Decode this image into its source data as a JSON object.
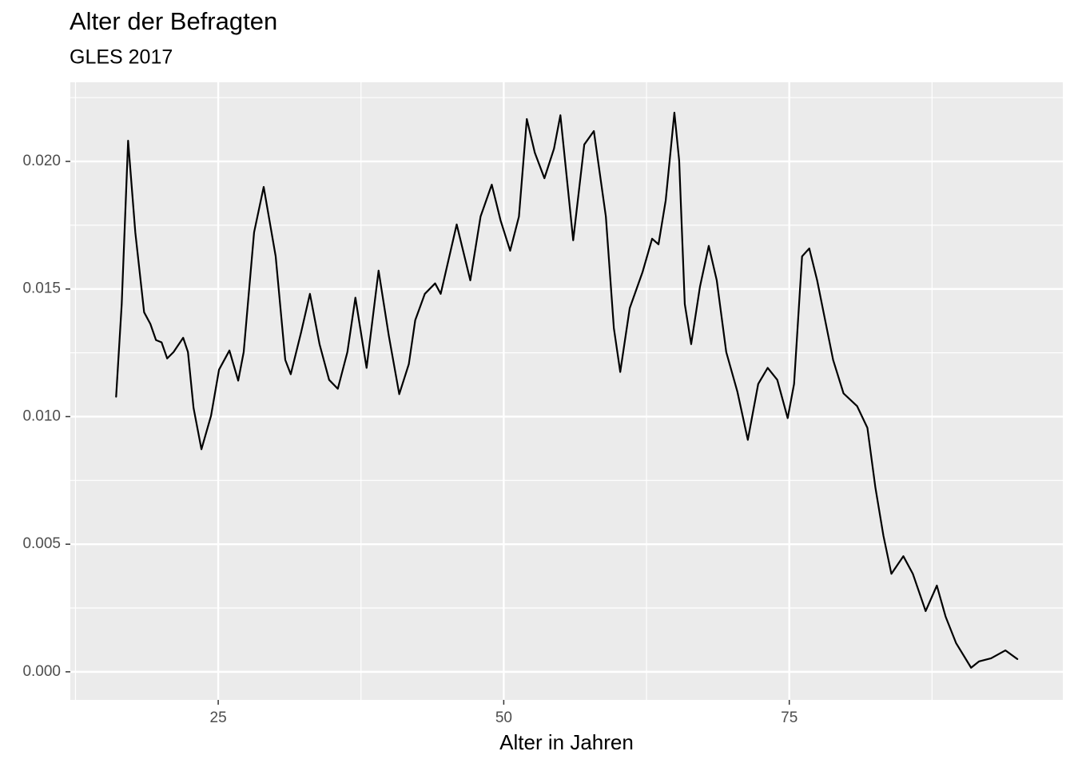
{
  "chart_data": {
    "type": "line",
    "title": "Alter der Befragten",
    "subtitle": "GLES 2017",
    "x_label": "Alter in Jahren",
    "x": [
      16.06,
      16.55,
      17.11,
      17.74,
      18.51,
      19.06,
      19.55,
      20.04,
      20.53,
      21.09,
      21.93,
      22.35,
      22.84,
      23.53,
      24.37,
      25.07,
      25.98,
      26.75,
      27.23,
      28.14,
      28.98,
      30.03,
      30.87,
      31.35,
      32.26,
      33.03,
      33.87,
      34.71,
      35.47,
      36.31,
      37.01,
      37.99,
      39.04,
      39.94,
      40.85,
      41.69,
      42.25,
      43.09,
      43.99,
      44.48,
      45.88,
      47.07,
      47.97,
      48.95,
      49.72,
      50.56,
      51.33,
      52.02,
      52.72,
      53.56,
      54.4,
      54.96,
      56.08,
      57.05,
      57.89,
      58.94,
      59.64,
      60.2,
      61.03,
      62.15,
      62.99,
      63.55,
      64.18,
      64.94,
      65.36,
      65.85,
      66.41,
      67.18,
      67.95,
      68.65,
      69.48,
      70.46,
      71.37,
      72.28,
      73.11,
      73.95,
      74.86,
      75.42,
      76.12,
      76.75,
      77.44,
      78,
      78.84,
      79.75,
      80.94,
      81.84,
      82.54,
      83.24,
      83.94,
      84.99,
      85.82,
      86.94,
      87.92,
      88.69,
      89.6,
      90.92,
      91.62,
      92.67,
      93.92,
      94.97
    ],
    "series": [
      {
        "color": "#000000",
        "values": [
          0.01078,
          0.01441,
          0.02081,
          0.01722,
          0.01409,
          0.01363,
          0.013,
          0.01291,
          0.01228,
          0.01253,
          0.01309,
          0.01253,
          0.01034,
          0.00872,
          0.01003,
          0.01184,
          0.01259,
          0.01141,
          0.01253,
          0.01722,
          0.019,
          0.01628,
          0.01222,
          0.01166,
          0.01331,
          0.01481,
          0.01284,
          0.01144,
          0.01109,
          0.01253,
          0.01466,
          0.01191,
          0.01572,
          0.01316,
          0.01088,
          0.01206,
          0.01378,
          0.01481,
          0.01522,
          0.01481,
          0.01753,
          0.01534,
          0.01784,
          0.01909,
          0.01769,
          0.0165,
          0.01784,
          0.02166,
          0.02034,
          0.01934,
          0.0205,
          0.02181,
          0.01691,
          0.02066,
          0.02119,
          0.01784,
          0.01347,
          0.01175,
          0.01425,
          0.01566,
          0.01697,
          0.01675,
          0.01847,
          0.02191,
          0.02003,
          0.01441,
          0.01284,
          0.01509,
          0.01669,
          0.01534,
          0.01253,
          0.01097,
          0.00909,
          0.01128,
          0.01191,
          0.01144,
          0.00994,
          0.01128,
          0.01628,
          0.01659,
          0.01534,
          0.01409,
          0.01222,
          0.01091,
          0.01041,
          0.00956,
          0.00722,
          0.00534,
          0.00384,
          0.00453,
          0.00384,
          0.00238,
          0.00338,
          0.00216,
          0.00113,
          0.00016,
          0.00041,
          0.00053,
          0.00084,
          0.0005
        ]
      }
    ],
    "xlim": [
      12.05,
      98.95
    ],
    "ylim": [
      -0.0011,
      0.0231
    ],
    "xticks": [
      25,
      50,
      75
    ],
    "xminorticks": [
      12.5,
      37.5,
      62.5,
      87.5
    ],
    "yticks": [
      {
        "value": 0,
        "label": "0.000"
      },
      {
        "value": 0.005,
        "label": "0.005"
      },
      {
        "value": 0.01,
        "label": "0.010"
      },
      {
        "value": 0.015,
        "label": "0.015"
      },
      {
        "value": 0.02,
        "label": "0.020"
      }
    ],
    "yminorticks": [
      0.0025,
      0.0075,
      0.0125,
      0.0175,
      0.0225
    ],
    "grid": true,
    "panel_color": "#ebebeb"
  }
}
